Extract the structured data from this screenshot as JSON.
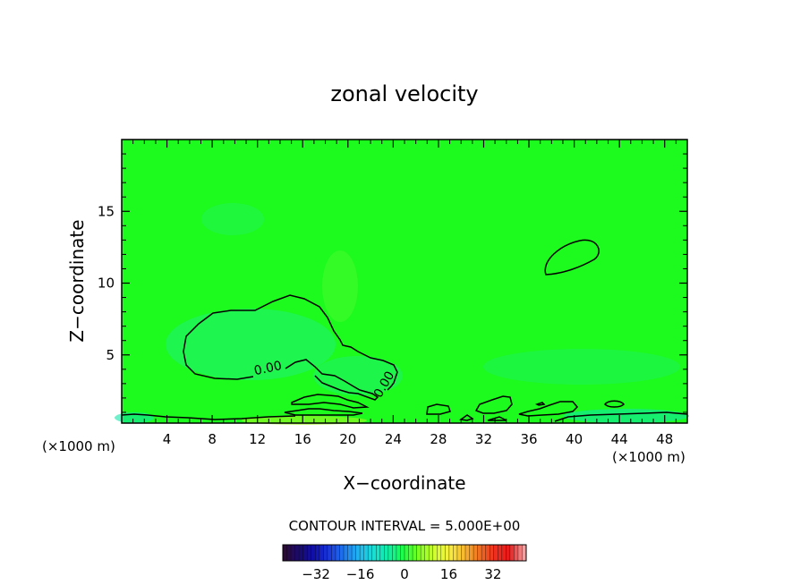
{
  "chart_data": {
    "type": "heatmap",
    "title": "zonal velocity",
    "xlabel": "X−coordinate",
    "ylabel": "Z−coordinate",
    "x_unit_left": "(×1000 m)",
    "x_unit_right": "(×1000 m)",
    "xlim": [
      0,
      50
    ],
    "ylim": [
      0.25,
      20
    ],
    "x_ticks": [
      4,
      8,
      12,
      16,
      20,
      24,
      28,
      32,
      36,
      40,
      44,
      48
    ],
    "y_ticks": [
      5,
      10,
      15
    ],
    "contour_interval_text": "CONTOUR INTERVAL = 5.000E+00",
    "contour_labels": [
      {
        "text": "0.00",
        "x": 13,
        "z": 3.8
      },
      {
        "text": "0.00",
        "x": 23.5,
        "z": 2.8
      }
    ],
    "colorbar": {
      "ticks": [
        -32,
        -16,
        0,
        16,
        32
      ],
      "tick_labels": [
        "−32",
        "−16",
        "0",
        "16",
        "32"
      ],
      "range": [
        -44,
        44
      ],
      "colors": [
        "#2b0a3a",
        "#1a0a6e",
        "#1010b0",
        "#1a3ae0",
        "#1e7af0",
        "#20b8f0",
        "#18e0d0",
        "#10f0a0",
        "#20ff40",
        "#80ff20",
        "#d0ff30",
        "#f8f040",
        "#f8b830",
        "#f07020",
        "#f03020",
        "#e81a1a",
        "#f0a0a0"
      ]
    },
    "background_value": 0,
    "field_note_colors": {
      "base": "#1dfa1d",
      "slightly_negative": "#1ff26e",
      "slightly_positive": "#78f82a"
    }
  }
}
